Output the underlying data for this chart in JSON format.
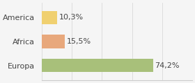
{
  "categories": [
    "America",
    "Africa",
    "Europa"
  ],
  "values": [
    10.3,
    15.5,
    74.2
  ],
  "bar_colors": [
    "#f0d070",
    "#e8a87c",
    "#a8c07a"
  ],
  "labels": [
    "10,3%",
    "15,5%",
    "74,2%"
  ],
  "xlim": [
    0,
    100
  ],
  "background_color": "#f5f5f5",
  "label_fontsize": 8.0,
  "tick_fontsize": 8.0
}
